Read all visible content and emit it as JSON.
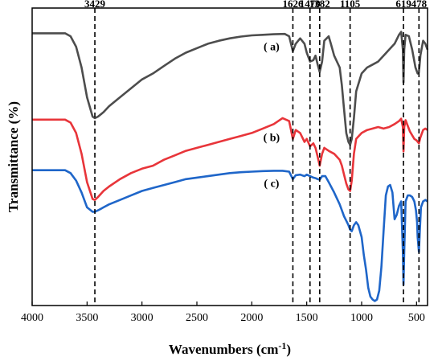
{
  "chart_data": {
    "type": "line",
    "xlabel": "Wavenumbers (cm",
    "xlabel_sup": "-1",
    "xlabel_close": ")",
    "ylabel": "Transmittance (%)",
    "xlim": [
      4000,
      400
    ],
    "x_reversed": true,
    "ylim": [
      0,
      100
    ],
    "y_ticks_shown": false,
    "grid": false,
    "legend": "none",
    "x_ticks": [
      4000,
      3500,
      3000,
      2500,
      2000,
      1500,
      1000,
      500
    ],
    "x_tick_labels": [
      "4000",
      "3500",
      "3000",
      "2500",
      "2000",
      "1500",
      "1000",
      "500"
    ],
    "peaks": [
      {
        "x": 3429,
        "label": "3429"
      },
      {
        "x": 1626,
        "label": "1626"
      },
      {
        "x": 1470,
        "label": "1470"
      },
      {
        "x": 1382,
        "label": "1382"
      },
      {
        "x": 1105,
        "label": "1105"
      },
      {
        "x": 619,
        "label": "619"
      },
      {
        "x": 478,
        "label": "478"
      }
    ],
    "series": [
      {
        "name": "( a)",
        "color": "#4d4d4d",
        "x": [
          4000,
          3800,
          3700,
          3650,
          3600,
          3550,
          3500,
          3450,
          3429,
          3400,
          3350,
          3300,
          3200,
          3100,
          3000,
          2900,
          2800,
          2700,
          2600,
          2500,
          2400,
          2300,
          2200,
          2100,
          2000,
          1900,
          1800,
          1700,
          1660,
          1626,
          1600,
          1560,
          1520,
          1500,
          1470,
          1440,
          1420,
          1400,
          1382,
          1360,
          1340,
          1300,
          1280,
          1250,
          1200,
          1180,
          1160,
          1140,
          1120,
          1105,
          1090,
          1070,
          1050,
          1000,
          950,
          900,
          850,
          800,
          750,
          700,
          660,
          640,
          625,
          619,
          612,
          600,
          570,
          540,
          510,
          490,
          478,
          465,
          440,
          420,
          400
        ],
        "values": [
          91.5,
          91.5,
          91.5,
          90.5,
          87,
          80,
          70,
          63.5,
          63,
          63.5,
          65,
          67,
          70,
          73,
          76,
          78,
          80.5,
          83,
          85,
          86.5,
          88,
          89,
          89.8,
          90.4,
          90.8,
          91,
          91.2,
          91.3,
          90.5,
          85.5,
          88,
          89.8,
          88,
          85,
          82,
          82.5,
          84,
          81,
          78.5,
          82,
          89,
          90.5,
          88,
          84,
          80,
          74,
          66,
          58,
          55,
          54,
          56,
          63,
          72,
          78,
          80,
          81,
          82,
          84,
          86,
          88,
          91,
          92,
          86,
          75,
          86,
          91,
          90.5,
          86,
          80,
          78,
          78.5,
          84,
          89,
          88,
          86
        ]
      },
      {
        "name": "( b)",
        "color": "#e8353a",
        "x": [
          4000,
          3800,
          3700,
          3650,
          3600,
          3550,
          3500,
          3450,
          3429,
          3400,
          3350,
          3300,
          3200,
          3100,
          3000,
          2900,
          2800,
          2700,
          2600,
          2500,
          2400,
          2300,
          2200,
          2100,
          2000,
          1900,
          1800,
          1720,
          1660,
          1626,
          1600,
          1560,
          1520,
          1500,
          1470,
          1440,
          1420,
          1400,
          1382,
          1360,
          1340,
          1300,
          1250,
          1200,
          1180,
          1160,
          1140,
          1120,
          1105,
          1090,
          1070,
          1050,
          1000,
          950,
          900,
          850,
          800,
          750,
          700,
          660,
          640,
          625,
          619,
          612,
          600,
          560,
          520,
          500,
          478,
          465,
          440,
          420,
          400
        ],
        "values": [
          62.5,
          62.5,
          62.5,
          61.5,
          58,
          51,
          41.5,
          35.8,
          35.5,
          36.5,
          38.5,
          40,
          42.5,
          44.5,
          46,
          47,
          49,
          50.5,
          52,
          53,
          54,
          55,
          56,
          57,
          58,
          59.5,
          61,
          63,
          62,
          56,
          59,
          58,
          55,
          56,
          53.5,
          54.5,
          53,
          50,
          47,
          51,
          53,
          52,
          51,
          49,
          47,
          44,
          41,
          39,
          38.5,
          42,
          51,
          56,
          58,
          59,
          59.5,
          60,
          59.5,
          60,
          61,
          62,
          62.8,
          60,
          51.8,
          60,
          62.3,
          58.5,
          56,
          55.5,
          54.5,
          56.5,
          59,
          59.5,
          59
        ]
      },
      {
        "name": "( c)",
        "color": "#1f66c9",
        "x": [
          4000,
          3800,
          3700,
          3650,
          3600,
          3550,
          3500,
          3450,
          3429,
          3400,
          3350,
          3300,
          3200,
          3100,
          3000,
          2900,
          2800,
          2700,
          2600,
          2500,
          2400,
          2300,
          2200,
          2100,
          2000,
          1900,
          1800,
          1720,
          1660,
          1626,
          1600,
          1560,
          1520,
          1500,
          1470,
          1440,
          1420,
          1400,
          1382,
          1360,
          1330,
          1300,
          1250,
          1200,
          1180,
          1160,
          1140,
          1120,
          1105,
          1090,
          1070,
          1050,
          1030,
          1000,
          980,
          960,
          940,
          920,
          900,
          880,
          860,
          840,
          820,
          800,
          780,
          760,
          740,
          720,
          700,
          680,
          660,
          640,
          625,
          619,
          612,
          600,
          580,
          560,
          540,
          520,
          505,
          495,
          490,
          478,
          470,
          460,
          440,
          420,
          400
        ],
        "values": [
          45.5,
          45.5,
          45.5,
          44.5,
          42,
          38,
          33,
          31.5,
          31.5,
          32,
          33,
          34,
          35.5,
          37,
          38.5,
          39.5,
          40.5,
          41.5,
          42.5,
          43,
          43.5,
          44,
          44.5,
          44.8,
          45,
          45.2,
          45.3,
          45.3,
          45,
          42.5,
          43.8,
          44,
          43.5,
          44,
          43.5,
          43,
          42.8,
          42.5,
          42.3,
          43.5,
          43.5,
          41.5,
          38,
          34,
          32,
          30,
          28.5,
          27,
          25.5,
          25,
          27,
          28,
          27,
          23,
          17,
          12,
          6,
          3,
          2,
          1.5,
          2,
          5,
          13,
          25,
          37,
          40,
          40.5,
          38,
          29,
          30.5,
          33.5,
          35,
          18,
          7,
          18,
          35,
          37,
          37,
          36.5,
          35,
          32,
          28,
          23,
          18,
          25,
          33,
          35,
          35.5,
          35
        ]
      }
    ]
  }
}
